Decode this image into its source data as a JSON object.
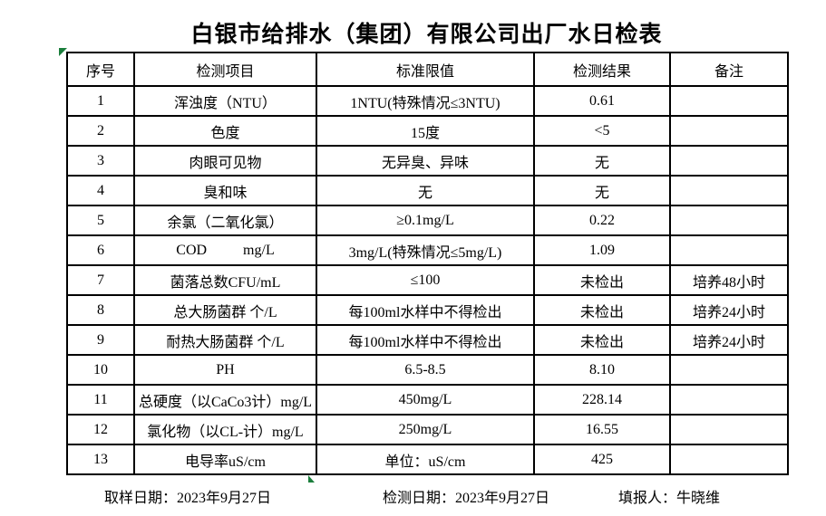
{
  "page": {
    "title": "白银市给排水（集团）有限公司出厂水日检表"
  },
  "table": {
    "headers": {
      "no": "序号",
      "item": "检测项目",
      "limit": "标准限值",
      "result": "检测结果",
      "note": "备注"
    },
    "rows": [
      {
        "no": "1",
        "item": "浑浊度（NTU）",
        "limit": "1NTU(特殊情况≤3NTU)",
        "result": "0.61",
        "note": ""
      },
      {
        "no": "2",
        "item": "色度",
        "limit": "15度",
        "result": "<5",
        "note": ""
      },
      {
        "no": "3",
        "item": "肉眼可见物",
        "limit": "无异臭、异味",
        "result": "无",
        "note": ""
      },
      {
        "no": "4",
        "item": "臭和味",
        "limit": "无",
        "result": "无",
        "note": ""
      },
      {
        "no": "5",
        "item": "余氯（二氧化氯）",
        "limit": "≥0.1mg/L",
        "result": "0.22",
        "note": ""
      },
      {
        "no": "6",
        "item": "COD          mg/L",
        "limit": "3mg/L(特殊情况≤5mg/L)",
        "result": "1.09",
        "note": ""
      },
      {
        "no": "7",
        "item": "菌落总数CFU/mL",
        "limit": "≤100",
        "result": "未检出",
        "note": "培养48小时"
      },
      {
        "no": "8",
        "item": "总大肠菌群 个/L",
        "limit": "每100ml水样中不得检出",
        "result": "未检出",
        "note": "培养24小时"
      },
      {
        "no": "9",
        "item": "耐热大肠菌群 个/L",
        "limit": "每100ml水样中不得检出",
        "result": "未检出",
        "note": "培养24小时"
      },
      {
        "no": "10",
        "item": "PH",
        "limit": "6.5-8.5",
        "result": "8.10",
        "note": ""
      },
      {
        "no": "11",
        "item": "总硬度（以CaCo3计）mg/L",
        "limit": "450mg/L",
        "result": "228.14",
        "note": ""
      },
      {
        "no": "12",
        "item": "氯化物（以CL-计）mg/L",
        "limit": "250mg/L",
        "result": "16.55",
        "note": ""
      },
      {
        "no": "13",
        "item": "电导率uS/cm",
        "limit": "单位：uS/cm",
        "result": "425",
        "note": ""
      }
    ]
  },
  "footer": {
    "sampling_date": "取样日期：2023年9月27日",
    "test_date": "检测日期：2023年9月27日",
    "reporter": "填报人：牛晓维"
  },
  "icons": {
    "top_left": "green-corner-triangle-marker",
    "bottom": "green-bottom-triangle-marker"
  },
  "colors": {
    "marker_green": "#1b7e3c",
    "border": "#000000",
    "text": "#000000",
    "background": "#ffffff"
  }
}
